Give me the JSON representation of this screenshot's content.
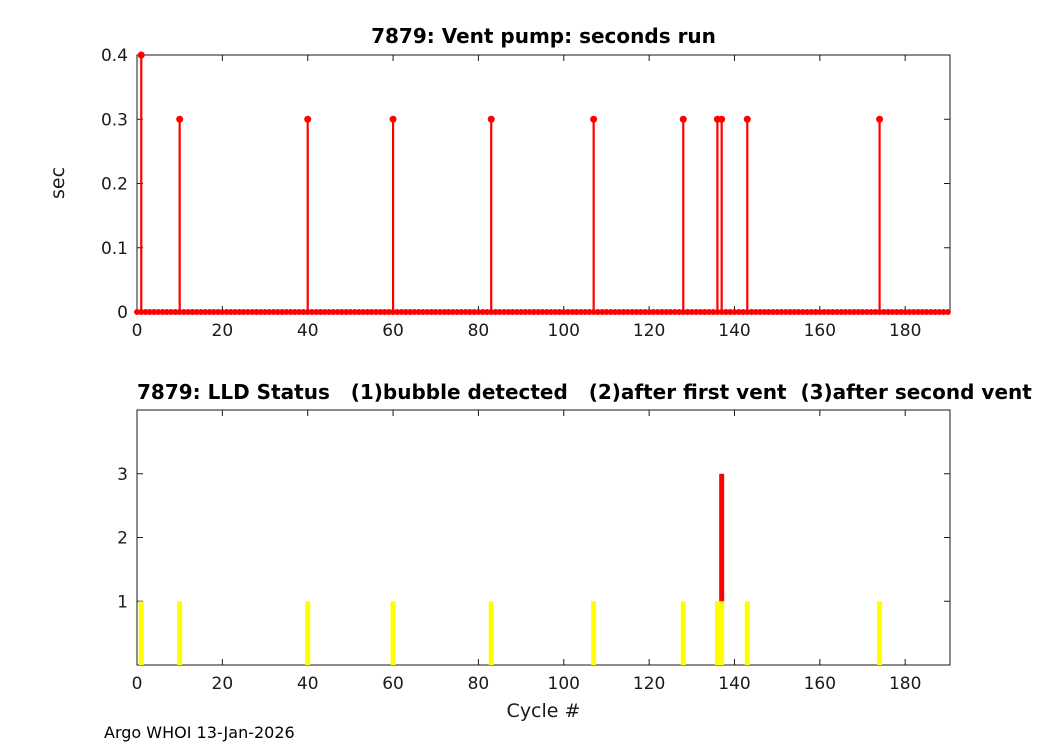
{
  "colors": {
    "stem": "#ff0000",
    "status_low": "#ffff00",
    "status_high": "#ff0000",
    "axis": "#1a1a1a",
    "background": "#ffffff"
  },
  "footer": {
    "credit": "Argo WHOI 13-Jan-2026"
  },
  "chart_data": [
    {
      "type": "stem",
      "title": "7879: Vent pump: seconds run",
      "ylabel": "sec",
      "xlim": [
        0,
        190.5
      ],
      "ylim": [
        0,
        0.4
      ],
      "xticks": [
        0,
        20,
        40,
        60,
        80,
        100,
        120,
        140,
        160,
        180
      ],
      "yticks": [
        0,
        0.1,
        0.2,
        0.3,
        0.4
      ],
      "zero_value_cycles": {
        "start": 0,
        "end": 190
      },
      "points": [
        {
          "x": 1,
          "y": 0.4
        },
        {
          "x": 10,
          "y": 0.3
        },
        {
          "x": 40,
          "y": 0.3
        },
        {
          "x": 60,
          "y": 0.3
        },
        {
          "x": 83,
          "y": 0.3
        },
        {
          "x": 107,
          "y": 0.3
        },
        {
          "x": 128,
          "y": 0.3
        },
        {
          "x": 136,
          "y": 0.3
        },
        {
          "x": 137,
          "y": 0.3
        },
        {
          "x": 143,
          "y": 0.3
        },
        {
          "x": 174,
          "y": 0.3
        }
      ]
    },
    {
      "type": "bar",
      "title": "7879: LLD Status   (1)bubble detected   (2)after first vent  (3)after second vent",
      "xlabel": "Cycle #",
      "xlim": [
        0,
        190.5
      ],
      "ylim": [
        0,
        4
      ],
      "xticks": [
        0,
        20,
        40,
        60,
        80,
        100,
        120,
        140,
        160,
        180
      ],
      "yticks": [
        1,
        2,
        3
      ],
      "bars": [
        {
          "x": 1,
          "y0": 0,
          "y1": 1,
          "color": "#ffff00"
        },
        {
          "x": 10,
          "y0": 0,
          "y1": 1,
          "color": "#ffff00"
        },
        {
          "x": 40,
          "y0": 0,
          "y1": 1,
          "color": "#ffff00"
        },
        {
          "x": 60,
          "y0": 0,
          "y1": 1,
          "color": "#ffff00"
        },
        {
          "x": 83,
          "y0": 0,
          "y1": 1,
          "color": "#ffff00"
        },
        {
          "x": 107,
          "y0": 0,
          "y1": 1,
          "color": "#ffff00"
        },
        {
          "x": 128,
          "y0": 0,
          "y1": 1,
          "color": "#ffff00"
        },
        {
          "x": 136,
          "y0": 0,
          "y1": 1,
          "color": "#ffff00"
        },
        {
          "x": 137,
          "y0": 0,
          "y1": 1,
          "color": "#ffff00"
        },
        {
          "x": 137,
          "y0": 1,
          "y1": 3,
          "color": "#ff0000"
        },
        {
          "x": 143,
          "y0": 0,
          "y1": 1,
          "color": "#ffff00"
        },
        {
          "x": 174,
          "y0": 0,
          "y1": 1,
          "color": "#ffff00"
        }
      ]
    }
  ]
}
